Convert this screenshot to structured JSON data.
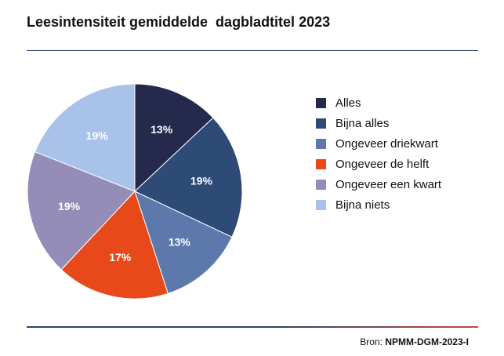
{
  "chart_data": {
    "type": "pie",
    "title": "Leesintensiteit gemiddelde  dagbladtitel 2023",
    "slices": [
      {
        "label": "Alles",
        "value": 13,
        "display": "13%",
        "color": "#252a4d"
      },
      {
        "label": "Bijna alles",
        "value": 19,
        "display": "19%",
        "color": "#2e4a77"
      },
      {
        "label": "Ongeveer driekwart",
        "value": 13,
        "display": "13%",
        "color": "#5d79ab"
      },
      {
        "label": "Ongeveer de helft",
        "value": 17,
        "display": "17%",
        "color": "#e8491a"
      },
      {
        "label": "Ongeveer een kwart",
        "value": 19,
        "display": "19%",
        "color": "#948db8"
      },
      {
        "label": "Bijna niets",
        "value": 19,
        "display": "19%",
        "color": "#a8c2ea"
      }
    ],
    "legend_position": "right"
  },
  "source": {
    "prefix": "Bron: ",
    "value": "NPMM-DGM-2023-I"
  }
}
